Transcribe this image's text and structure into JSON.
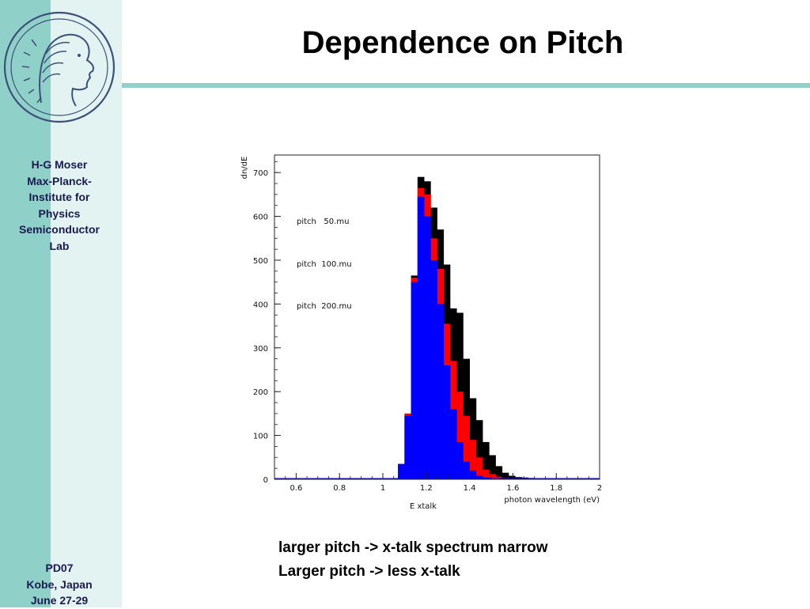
{
  "slide": {
    "title": "Dependence on Pitch",
    "bullets": [
      "larger pitch -> x-talk spectrum narrow",
      "Larger pitch -> less x-talk"
    ]
  },
  "sidebar": {
    "affiliation": [
      "H-G Moser",
      "Max-Planck-",
      "Institute for",
      "Physics",
      "Semiconductor",
      "Lab"
    ],
    "conference": [
      "PD07",
      "Kobe, Japan",
      "June 27-29"
    ],
    "logo_icon": "minerva-head-logo"
  },
  "colors": {
    "sidebar_dark": "#8fd1c8",
    "sidebar_light": "#e2f3f1",
    "series_50": "#000000",
    "series_100": "#ff0000",
    "series_200": "#0000ff"
  },
  "chart_data": {
    "type": "bar",
    "subtype": "overlaid step histogram",
    "xlabel": "E xtalk",
    "xlabel2": "photon wavelength (eV)",
    "ylabel": "dn/dE",
    "xlim": [
      0.5,
      2.0
    ],
    "ylim": [
      0,
      740
    ],
    "xticks": [
      "0.6",
      "0.8",
      "1",
      "1.2",
      "1.4",
      "1.6",
      "1.8",
      "2"
    ],
    "yticks": [
      "0",
      "100",
      "200",
      "300",
      "400",
      "500",
      "600",
      "700"
    ],
    "grid": false,
    "legend_placement": "top-left (inside)",
    "bin_width": 0.03,
    "x": [
      1.04,
      1.07,
      1.1,
      1.13,
      1.16,
      1.19,
      1.22,
      1.25,
      1.28,
      1.31,
      1.34,
      1.37,
      1.4,
      1.43,
      1.46,
      1.49,
      1.52,
      1.55,
      1.58,
      1.61,
      1.64,
      1.67,
      1.7,
      1.73,
      1.76,
      1.79,
      1.82,
      1.85,
      1.88,
      1.91,
      1.94,
      1.97
    ],
    "series": [
      {
        "name": "pitch   50.mu",
        "color": "#000000",
        "values": [
          2,
          35,
          150,
          465,
          690,
          680,
          620,
          570,
          490,
          390,
          380,
          275,
          185,
          135,
          85,
          55,
          30,
          15,
          8,
          5,
          4,
          3,
          2,
          1,
          1,
          1,
          0,
          0,
          0,
          0,
          0,
          0
        ]
      },
      {
        "name": "pitch  100.mu",
        "color": "#ff0000",
        "values": [
          2,
          35,
          150,
          460,
          665,
          650,
          550,
          480,
          355,
          270,
          200,
          145,
          90,
          50,
          22,
          12,
          6,
          3,
          2,
          1,
          0,
          0,
          0,
          0,
          0,
          0,
          0,
          0,
          0,
          0,
          0,
          0
        ]
      },
      {
        "name": "pitch  200.mu",
        "color": "#0000ff",
        "values": [
          2,
          35,
          145,
          450,
          645,
          600,
          500,
          400,
          260,
          160,
          85,
          40,
          20,
          8,
          4,
          2,
          1,
          0,
          0,
          0,
          0,
          0,
          0,
          0,
          0,
          0,
          0,
          0,
          0,
          0,
          0,
          0
        ]
      }
    ]
  }
}
